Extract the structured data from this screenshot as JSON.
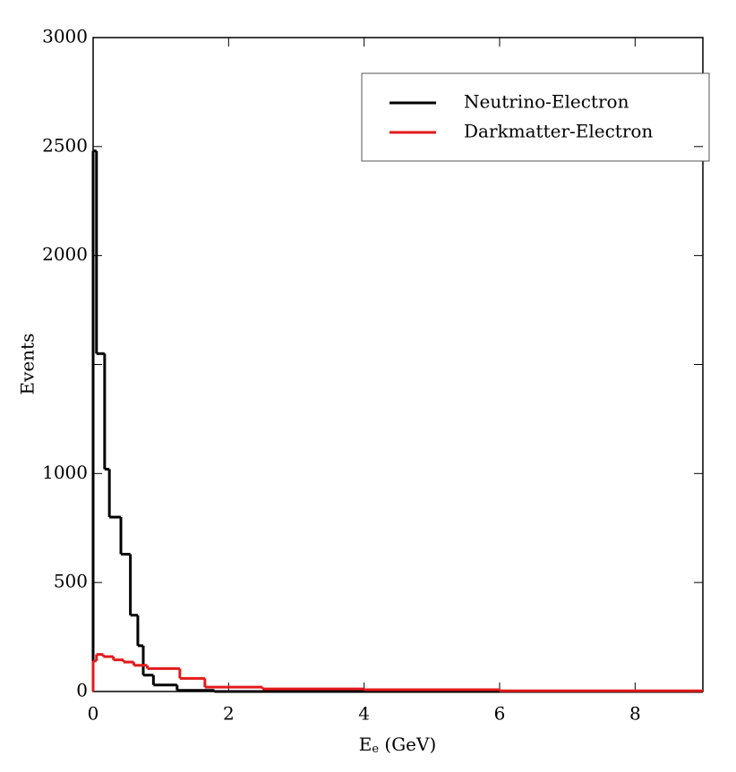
{
  "chart_data": {
    "type": "histogram",
    "ylabel": "Events",
    "xlabel": [
      "E",
      "e",
      " (GeV)"
    ],
    "xlim": [
      0,
      9
    ],
    "xticks": [
      0,
      2,
      4,
      6,
      8
    ],
    "ylim": [
      0,
      3000
    ],
    "yticks": [
      0,
      500,
      1000,
      {
        "value": 1500,
        "label": null
      },
      2000,
      2500,
      3000
    ],
    "legend": "upper right",
    "series": [
      {
        "name": "Neutrino-Electron",
        "color": "#000000",
        "bins": [
          0,
          0.05,
          0.17,
          0.24,
          0.41,
          0.55,
          0.66,
          0.74,
          0.89,
          1.24,
          1.79,
          9
        ],
        "values": [
          2480,
          1550,
          1020,
          800,
          630,
          350,
          210,
          75,
          30,
          5,
          0
        ]
      },
      {
        "name": "Darkmatter-Electron",
        "color": "#e31a1c",
        "bins": [
          0,
          0.05,
          0.15,
          0.3,
          0.45,
          0.6,
          0.8,
          1.28,
          1.65,
          2.5,
          4,
          6,
          9
        ],
        "values": [
          140,
          170,
          160,
          145,
          135,
          120,
          105,
          60,
          20,
          12,
          8,
          3
        ]
      }
    ]
  }
}
